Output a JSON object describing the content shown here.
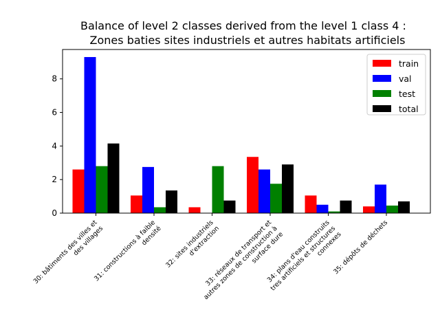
{
  "chart_data": {
    "type": "bar",
    "title_line1": "Balance of level 2 classes derived from the level 1 class 4 :",
    "title_line2": "Zones baties sites industriels et autres habitats artificiels",
    "xlabel": "",
    "ylabel": "",
    "ylim": [
      0,
      9.75
    ],
    "yticks": [
      0,
      2,
      4,
      6,
      8
    ],
    "grid": false,
    "legend_position": "top-right",
    "categories": [
      [
        "30: bâtiments des villes et",
        "des villages"
      ],
      [
        "31: constructions à faible",
        "densité"
      ],
      [
        "32: sites industriels",
        "d'extraction"
      ],
      [
        "33: réseaux de transport et",
        "autres zones de construction à",
        "surface dure"
      ],
      [
        "34: plans d'eau construits",
        "tres artificiels et structures",
        "connexes"
      ],
      [
        "35: dépôts de déchets"
      ]
    ],
    "series": [
      {
        "name": "train",
        "color": "#ff0000",
        "values": [
          2.6,
          1.05,
          0.35,
          3.35,
          1.05,
          0.4
        ]
      },
      {
        "name": "val",
        "color": "#0000ff",
        "values": [
          9.3,
          2.75,
          0.0,
          2.6,
          0.5,
          1.7
        ]
      },
      {
        "name": "test",
        "color": "#008000",
        "values": [
          2.8,
          0.35,
          2.8,
          1.75,
          0.1,
          0.45
        ]
      },
      {
        "name": "total",
        "color": "#000000",
        "values": [
          4.15,
          1.35,
          0.75,
          2.9,
          0.75,
          0.7
        ]
      }
    ]
  }
}
